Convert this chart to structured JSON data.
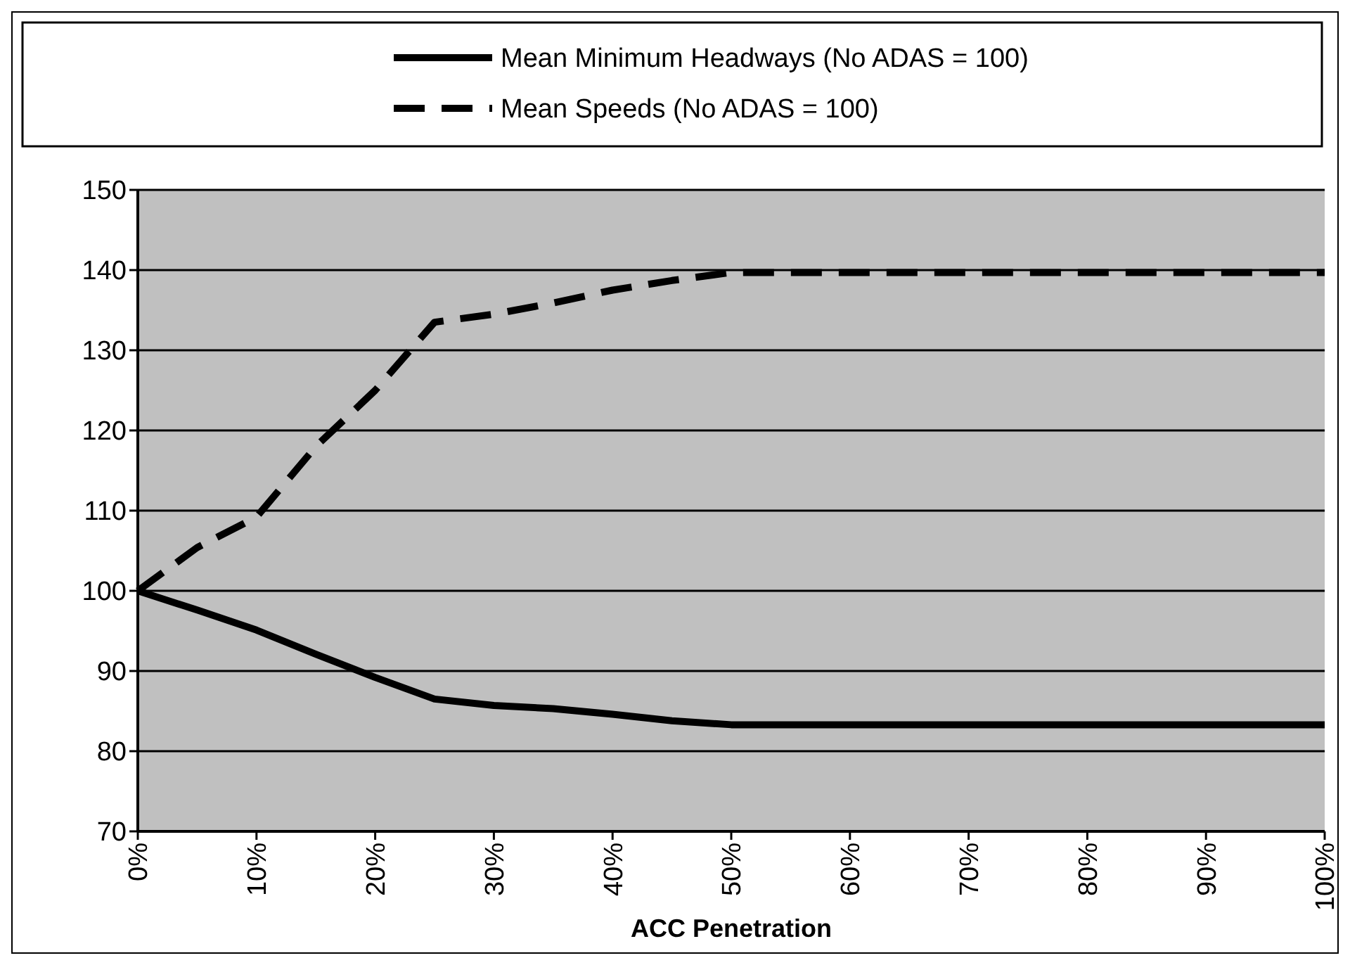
{
  "chart_data": {
    "type": "line",
    "xlabel": "ACC Penetration",
    "x": [
      0,
      5,
      10,
      15,
      20,
      25,
      30,
      35,
      40,
      45,
      50,
      55,
      60,
      65,
      70,
      75,
      80,
      85,
      90,
      95,
      100
    ],
    "series": [
      {
        "name": "Mean Minimum Headways (No ADAS = 100)",
        "color": "#000000",
        "line_style": "solid",
        "values": [
          100,
          97.6,
          95.1,
          92.1,
          89.2,
          86.5,
          85.7,
          85.3,
          84.6,
          83.8,
          83.3,
          83.3,
          83.3,
          83.3,
          83.3,
          83.3,
          83.3,
          83.3,
          83.3,
          83.3,
          83.3
        ]
      },
      {
        "name": "Mean Speeds (No ADAS = 100)",
        "color": "#000000",
        "line_style": "dashed",
        "values": [
          100,
          105.4,
          109.2,
          118,
          125,
          133.5,
          134.5,
          135.9,
          137.5,
          138.7,
          139.7,
          139.7,
          139.7,
          139.7,
          139.7,
          139.7,
          139.7,
          139.7,
          139.7,
          139.7,
          139.7
        ]
      }
    ],
    "xlim": [
      0,
      100
    ],
    "xticks": [
      {
        "value": 0,
        "label": "0%"
      },
      {
        "value": 10,
        "label": "10%"
      },
      {
        "value": 20,
        "label": "20%"
      },
      {
        "value": 30,
        "label": "30%"
      },
      {
        "value": 40,
        "label": "40%"
      },
      {
        "value": 50,
        "label": "50%"
      },
      {
        "value": 60,
        "label": "60%"
      },
      {
        "value": 70,
        "label": "70%"
      },
      {
        "value": 80,
        "label": "80%"
      },
      {
        "value": 90,
        "label": "90%"
      },
      {
        "value": 100,
        "label": "100%"
      }
    ],
    "ylim": [
      70,
      150
    ],
    "yticks": [
      70,
      80,
      90,
      100,
      110,
      120,
      130,
      140,
      150
    ],
    "grid": "y",
    "legend": "top",
    "marker": "none"
  }
}
